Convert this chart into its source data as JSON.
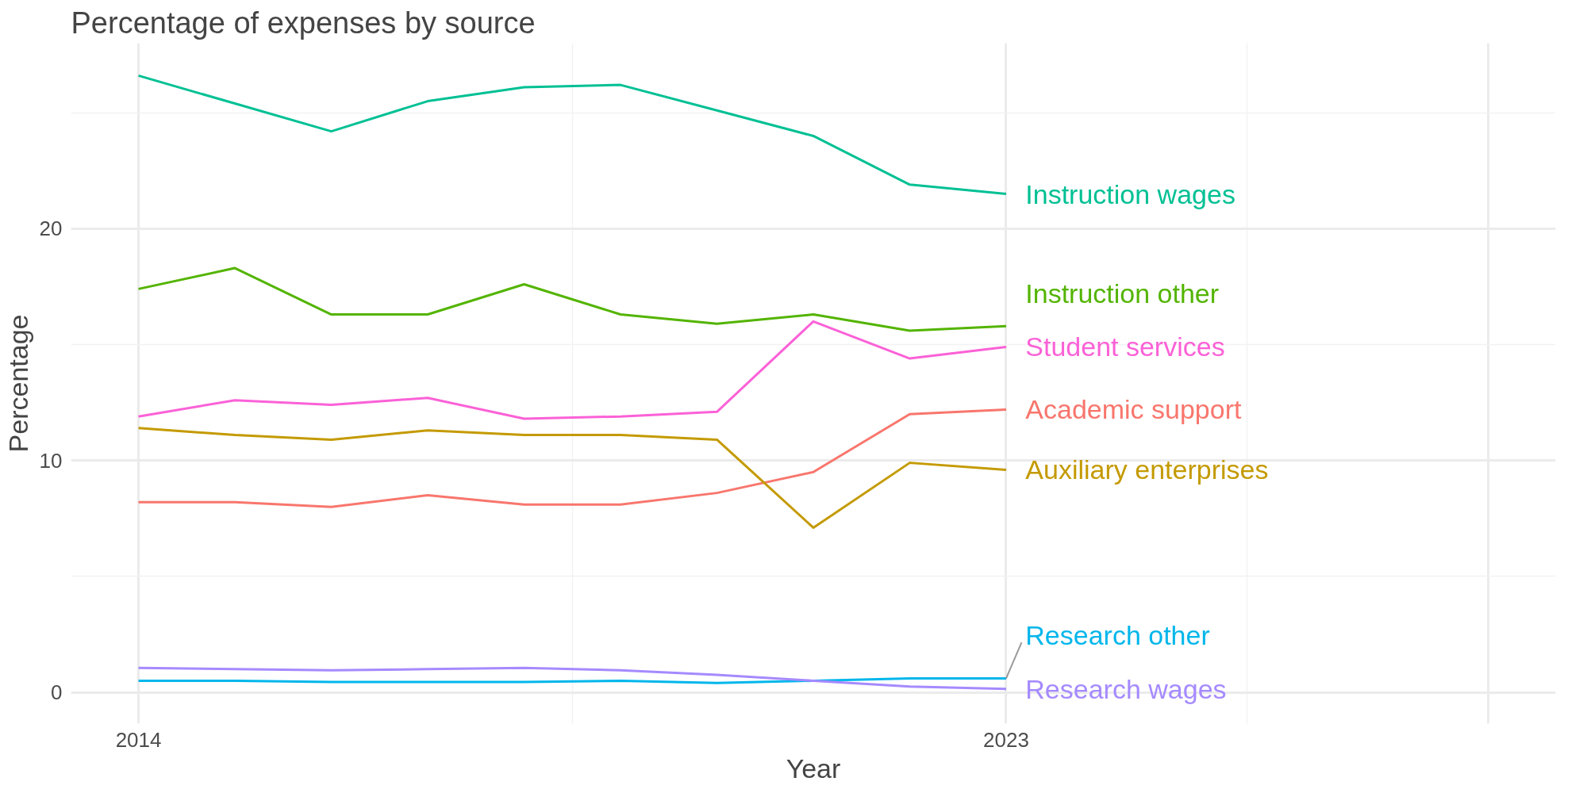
{
  "chart_data": {
    "type": "line",
    "title": "Percentage of expenses by source",
    "xlabel": "Year",
    "ylabel": "Percentage",
    "x": [
      2014,
      2015,
      2016,
      2017,
      2018,
      2019,
      2020,
      2021,
      2022,
      2023
    ],
    "xlim": [
      2013.3,
      2028.7
    ],
    "xticks": [
      2014,
      2023,
      {
        "value": 2028,
        "label": null
      }
    ],
    "ylim": [
      -1.35,
      28
    ],
    "yticks": [
      0,
      10,
      20
    ],
    "grid": true,
    "legend": false,
    "series": [
      {
        "name": "Academic support",
        "color": "#f8766d",
        "values": [
          8.2,
          8.2,
          8.0,
          8.5,
          8.1,
          8.1,
          8.6,
          9.5,
          12.0,
          12.2
        ]
      },
      {
        "name": "Auxiliary enterprises",
        "color": "#c49a00",
        "values": [
          11.4,
          11.1,
          10.9,
          11.3,
          11.1,
          11.1,
          10.9,
          7.1,
          9.9,
          9.6
        ]
      },
      {
        "name": "Instruction other",
        "color": "#53b400",
        "values": [
          17.4,
          18.3,
          16.3,
          16.3,
          17.6,
          16.3,
          15.9,
          16.3,
          15.6,
          15.8
        ]
      },
      {
        "name": "Instruction wages",
        "color": "#00c094",
        "values": [
          26.6,
          25.4,
          24.2,
          25.5,
          26.1,
          26.2,
          25.1,
          24.0,
          21.9,
          21.5
        ]
      },
      {
        "name": "Research other",
        "color": "#00b6eb",
        "values": [
          0.5,
          0.5,
          0.45,
          0.45,
          0.45,
          0.5,
          0.4,
          0.5,
          0.6,
          0.6
        ]
      },
      {
        "name": "Research wages",
        "color": "#a58aff",
        "values": [
          1.05,
          1.0,
          0.95,
          1.0,
          1.05,
          0.95,
          0.75,
          0.5,
          0.25,
          0.15
        ]
      },
      {
        "name": "Student services",
        "color": "#fb61d7",
        "values": [
          11.9,
          12.6,
          12.4,
          12.7,
          11.8,
          11.9,
          12.1,
          16.0,
          14.4,
          14.9
        ]
      }
    ]
  }
}
